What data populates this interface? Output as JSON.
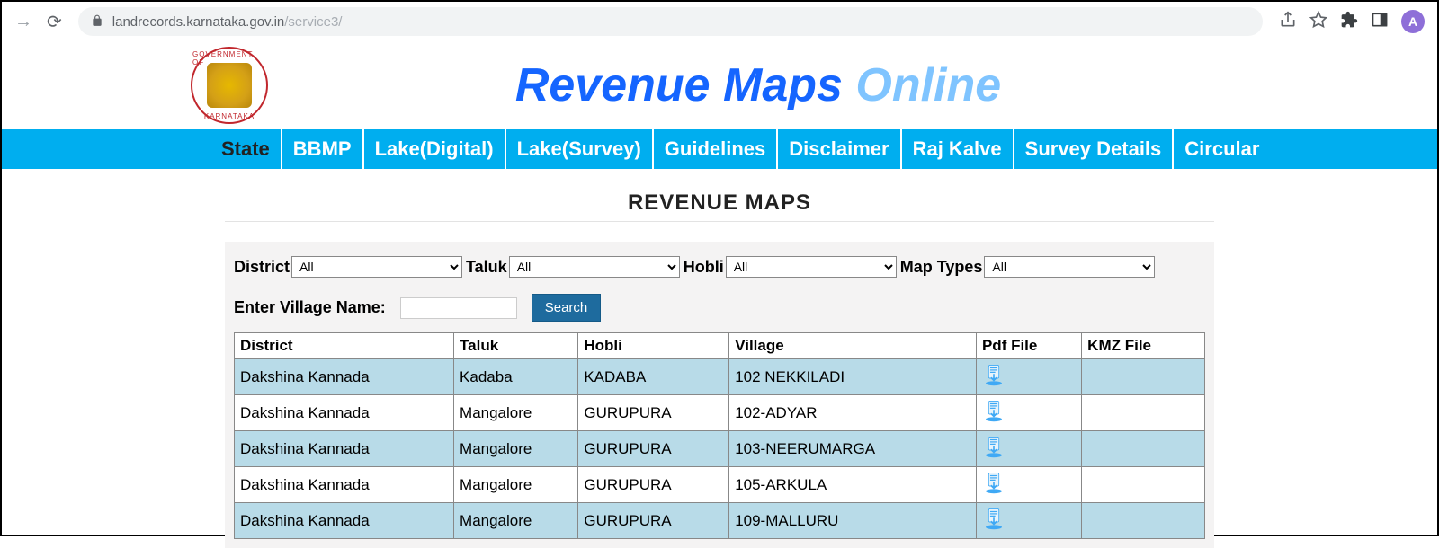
{
  "browser": {
    "url_host": "landrecords.karnataka.gov.in",
    "url_path": "/service3/",
    "avatar_letter": "A",
    "avatar_bg": "#8e6fd8"
  },
  "header": {
    "title_part1": "Revenue Maps ",
    "title_part2": "Online",
    "title_color1": "#1565ff",
    "title_color2": "#7fc4ff"
  },
  "nav": {
    "items": [
      "State",
      "BBMP",
      "Lake(Digital)",
      "Lake(Survey)",
      "Guidelines",
      "Disclaimer",
      "Raj Kalve",
      "Survey Details",
      "Circular"
    ],
    "active_index": 0,
    "bar_color": "#00aeef"
  },
  "section": {
    "title": "REVENUE MAPS"
  },
  "filters": {
    "district_label": "District",
    "district_value": "All",
    "taluk_label": "Taluk",
    "taluk_value": "All",
    "hobli_label": "Hobli",
    "hobli_value": "All",
    "maptypes_label": "Map Types",
    "maptypes_value": "All",
    "village_label": "Enter Village Name:",
    "village_value": "",
    "search_label": "Search",
    "search_btn_bg": "#1e6b9e"
  },
  "table": {
    "columns": [
      "District",
      "Taluk",
      "Hobli",
      "Village",
      "Pdf File",
      "KMZ File"
    ],
    "header_bg": "#ffffff",
    "row_odd_bg": "#b8dbe8",
    "row_even_bg": "#ffffff",
    "border_color": "#888888",
    "rows": [
      {
        "district": "Dakshina Kannada",
        "taluk": "Kadaba",
        "hobli": "KADABA",
        "village": "102 NEKKILADI",
        "has_pdf": true,
        "has_kmz": false
      },
      {
        "district": "Dakshina Kannada",
        "taluk": "Mangalore",
        "hobli": "GURUPURA",
        "village": "102-ADYAR",
        "has_pdf": true,
        "has_kmz": false
      },
      {
        "district": "Dakshina Kannada",
        "taluk": "Mangalore",
        "hobli": "GURUPURA",
        "village": "103-NEERUMARGA",
        "has_pdf": true,
        "has_kmz": false
      },
      {
        "district": "Dakshina Kannada",
        "taluk": "Mangalore",
        "hobli": "GURUPURA",
        "village": "105-ARKULA",
        "has_pdf": true,
        "has_kmz": false
      },
      {
        "district": "Dakshina Kannada",
        "taluk": "Mangalore",
        "hobli": "GURUPURA",
        "village": "109-MALLURU",
        "has_pdf": true,
        "has_kmz": false
      }
    ]
  }
}
